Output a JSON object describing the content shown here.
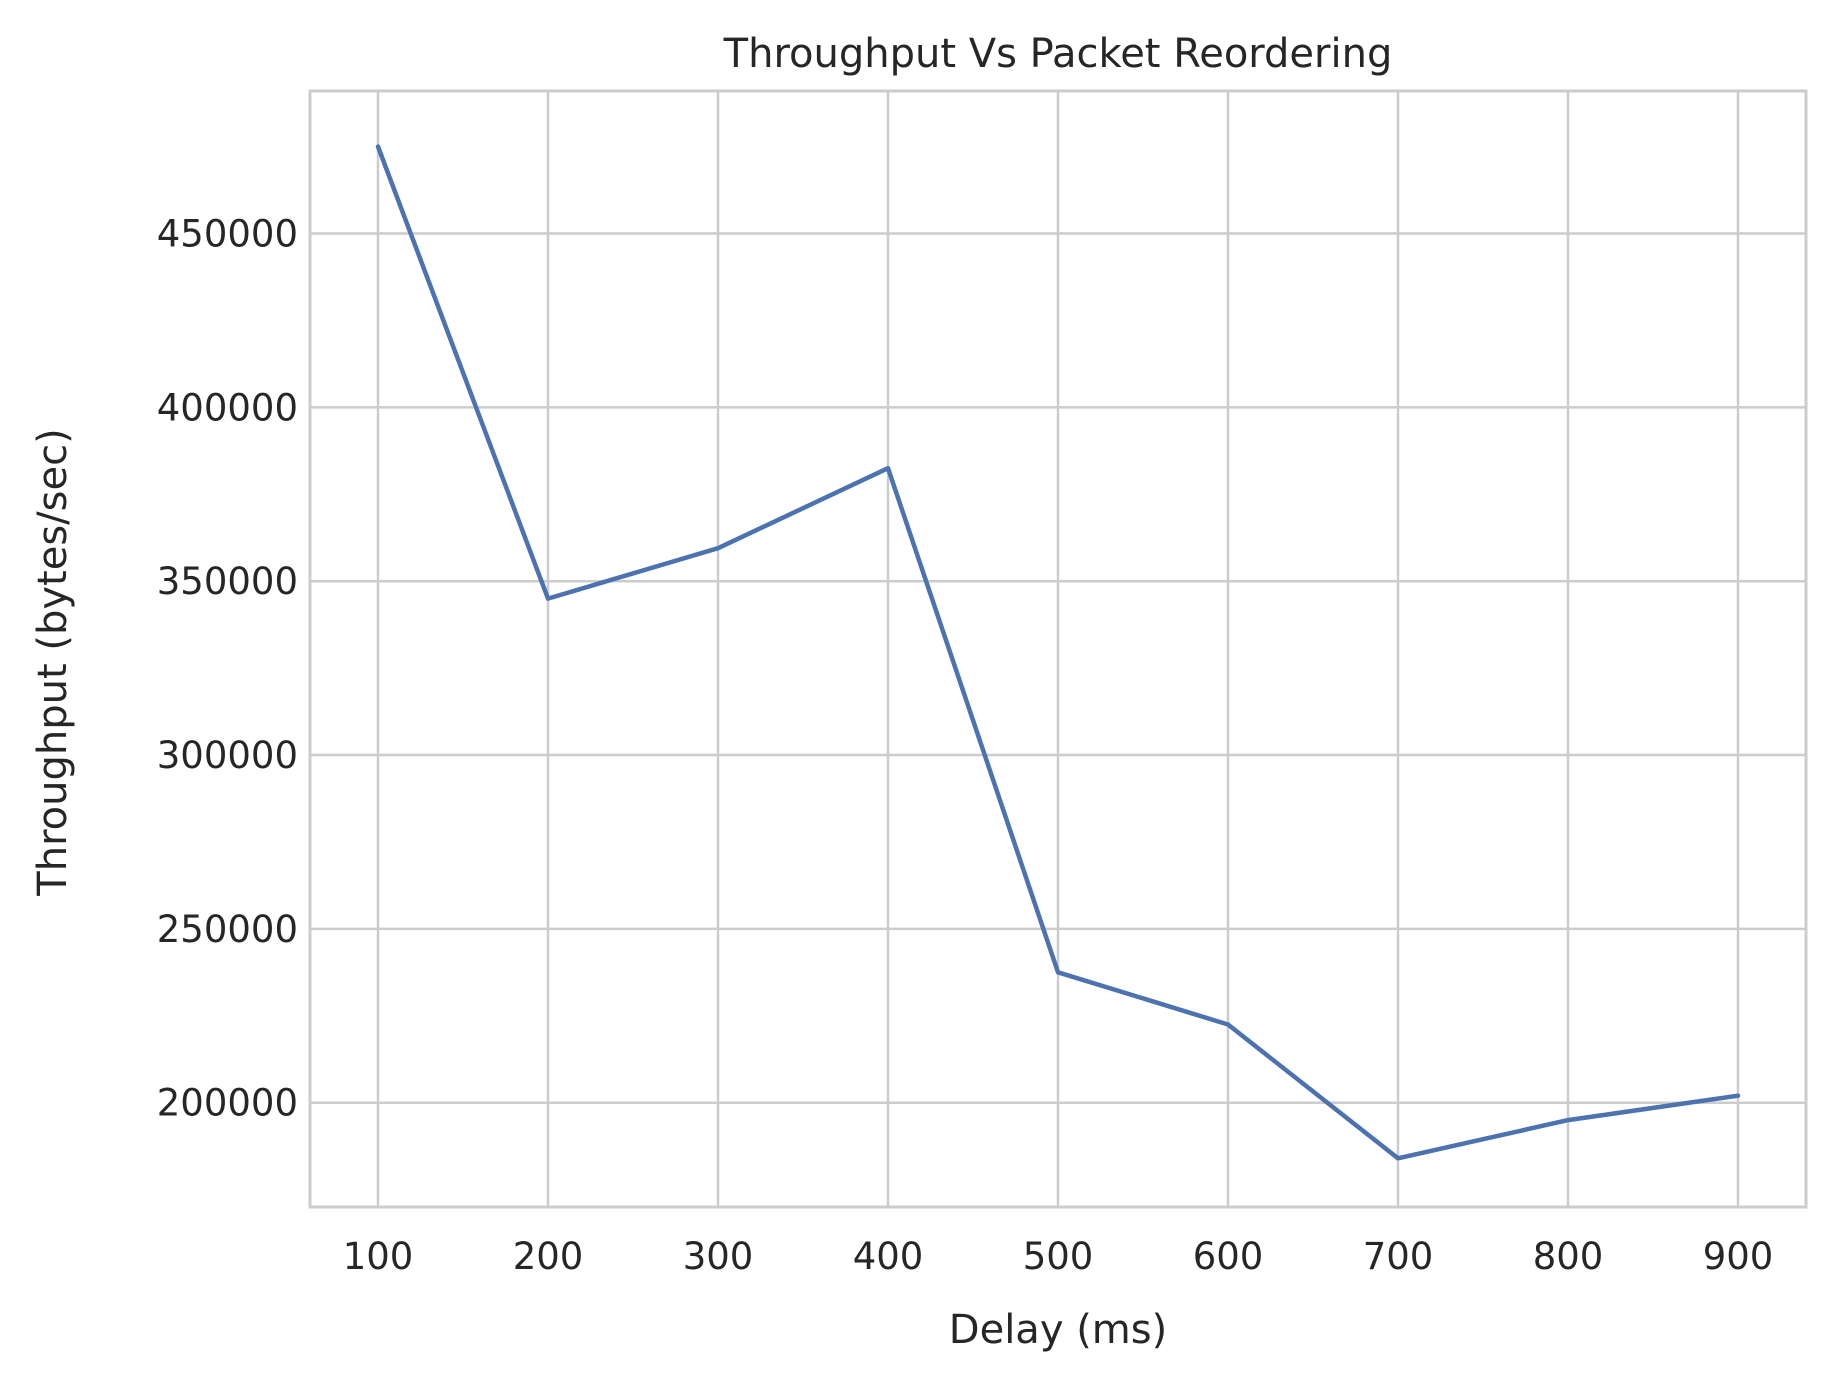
{
  "chart_data": {
    "type": "line",
    "title": "Throughput Vs Packet Reordering",
    "xlabel": "Delay (ms)",
    "ylabel": "Throughput (bytes/sec)",
    "x": [
      100,
      200,
      300,
      400,
      500,
      600,
      700,
      800,
      900
    ],
    "series": [
      {
        "values": [
          475000,
          345000,
          359500,
          382500,
          237500,
          222500,
          184000,
          195000,
          202000
        ],
        "color": "#4c72b0"
      }
    ],
    "xticks": [
      100,
      200,
      300,
      400,
      500,
      600,
      700,
      800,
      900
    ],
    "yticks": [
      200000,
      250000,
      300000,
      350000,
      400000,
      450000
    ],
    "xlim": [
      60,
      940
    ],
    "ylim": [
      170000,
      491000
    ],
    "grid": true,
    "legend": "none"
  }
}
